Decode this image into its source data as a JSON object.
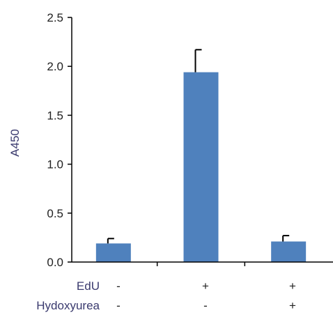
{
  "chart_data": {
    "type": "bar",
    "title": "",
    "xlabel": "",
    "ylabel": "A450",
    "ylim": [
      0,
      2.5
    ],
    "yticks": [
      "0.0",
      "0.5",
      "1.0",
      "1.5",
      "2.0",
      "2.5"
    ],
    "categories": [
      "EdU - / Hydoxyurea -",
      "EdU + / Hydoxyurea -",
      "EdU + / Hydoxyurea +"
    ],
    "values": [
      0.19,
      1.94,
      0.21
    ],
    "errors": [
      0.05,
      0.23,
      0.06
    ],
    "bar_color": "#4f81bd",
    "condition_rows": [
      {
        "label": "EdU",
        "values": [
          "-",
          "+",
          "+"
        ]
      },
      {
        "label": "Hydoxyurea",
        "values": [
          "-",
          "-",
          "+"
        ]
      }
    ]
  }
}
